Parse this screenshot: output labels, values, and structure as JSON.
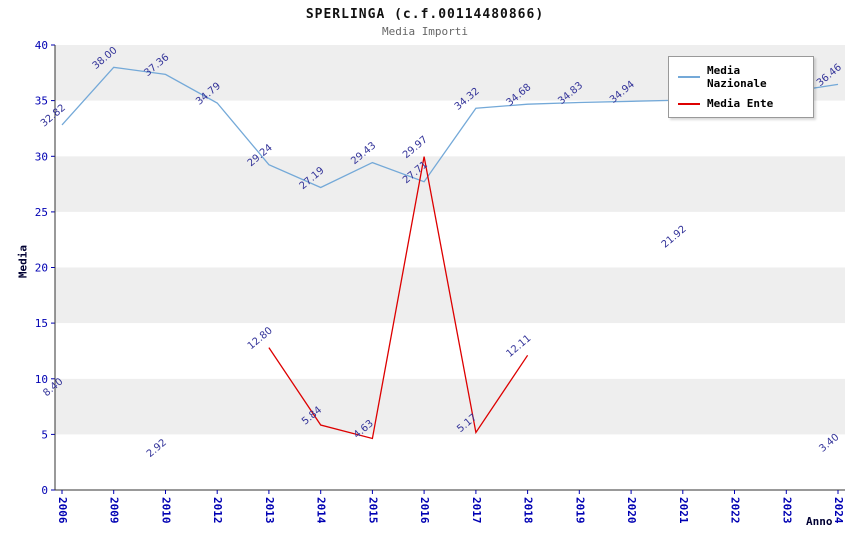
{
  "title": "SPERLINGA (c.f.00114480866)",
  "subtitle": "Media Importi",
  "chart_data": {
    "type": "line",
    "xlabel": "Anno",
    "ylabel": "Media",
    "ylim": [
      0,
      40
    ],
    "ytick_step": 5,
    "grid": "alternating-horizontal-bands",
    "legend_position": "top-right",
    "band_color": "#eeeeee",
    "tick_label_color": "#0000b3",
    "data_label_color": "#333399",
    "axis_color": "#333333",
    "categories": [
      "2006",
      "2009",
      "2010",
      "2012",
      "2013",
      "2014",
      "2015",
      "2016",
      "2017",
      "2018",
      "2019",
      "2020",
      "2021",
      "2022",
      "2023",
      "2024"
    ],
    "series": [
      {
        "name": "Media Nazionale",
        "color": "#74a9d8",
        "values": [
          32.82,
          38.0,
          37.36,
          34.79,
          29.24,
          27.19,
          29.43,
          27.71,
          34.32,
          34.68,
          34.83,
          34.94,
          35.05,
          35.19,
          35.75,
          36.46
        ],
        "hidden_label_indices": [
          12,
          13,
          14
        ]
      },
      {
        "name": "Media Ente",
        "color": "#dd0000",
        "values": [
          8.4,
          null,
          2.92,
          null,
          12.8,
          5.84,
          4.63,
          29.97,
          5.17,
          12.11,
          null,
          null,
          21.92,
          null,
          null,
          3.4
        ],
        "hidden_label_indices": []
      }
    ]
  }
}
